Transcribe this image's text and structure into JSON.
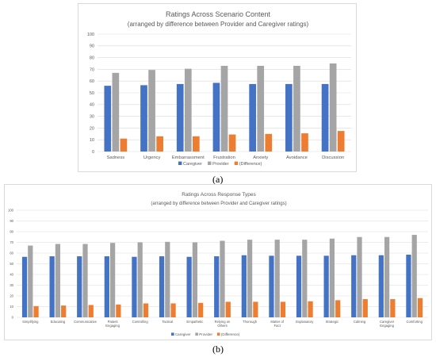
{
  "captions": {
    "a": "(a)",
    "b": "(b)"
  },
  "colors": {
    "caregiver": "#4472C4",
    "provider": "#A5A5A5",
    "difference": "#ED7D31"
  },
  "chart_data": [
    {
      "type": "bar",
      "title": "Ratings Across Scenario Content",
      "subtitle": "(arranged by difference between Provider and Caregiver ratings)",
      "xlabel": "",
      "ylabel": "",
      "ylim": [
        0,
        100
      ],
      "yticks": [
        0,
        10,
        20,
        30,
        40,
        50,
        60,
        70,
        80,
        90,
        100
      ],
      "grid": true,
      "legend": "bottom",
      "categories": [
        "Sadness",
        "Urgency",
        "Embarrassment",
        "Frustration",
        "Anxiety",
        "Avoidance",
        "Discussion"
      ],
      "series": [
        {
          "name": "Caregiver",
          "values": [
            56,
            56.5,
            57.5,
            58.5,
            57.5,
            57.5,
            57.5
          ]
        },
        {
          "name": "Provider",
          "values": [
            67,
            69.5,
            70.5,
            73,
            73,
            73,
            75
          ]
        },
        {
          "name": "(Difference)",
          "values": [
            11,
            13,
            13,
            14.5,
            15,
            15.5,
            17.5
          ]
        }
      ]
    },
    {
      "type": "bar",
      "title": "Ratings Across Response Types",
      "subtitle": "(arranged by difference between Provider and Caregiver ratings)",
      "xlabel": "",
      "ylabel": "",
      "ylim": [
        0,
        100
      ],
      "yticks": [
        0,
        10,
        20,
        30,
        40,
        50,
        60,
        70,
        80,
        90,
        100
      ],
      "grid": true,
      "legend": "bottom",
      "categories": [
        "Simplifying",
        "Educating",
        "Communicative",
        "Patient Engaging",
        "Controlling",
        "Tactical",
        "Empathetic",
        "Relying on Others",
        "Thorough",
        "Matter of Fact",
        "Explanatory",
        "Strategic",
        "Calming",
        "Caregiver Engaging",
        "Comforting"
      ],
      "series": [
        {
          "name": "Caregiver",
          "values": [
            56.5,
            57,
            57,
            57,
            56.5,
            57,
            56.5,
            57,
            58,
            57.5,
            57.5,
            57.5,
            58,
            58,
            58.5
          ]
        },
        {
          "name": "Provider",
          "values": [
            67,
            68.5,
            68.5,
            69.5,
            70,
            70.5,
            70,
            71.5,
            72.5,
            72.5,
            72.5,
            73.5,
            75,
            75,
            77
          ]
        },
        {
          "name": "(Difference)",
          "values": [
            10.5,
            11,
            11.5,
            12,
            13,
            13,
            13.5,
            14.5,
            14.5,
            14.5,
            15,
            16,
            17,
            17,
            18
          ]
        }
      ]
    }
  ]
}
